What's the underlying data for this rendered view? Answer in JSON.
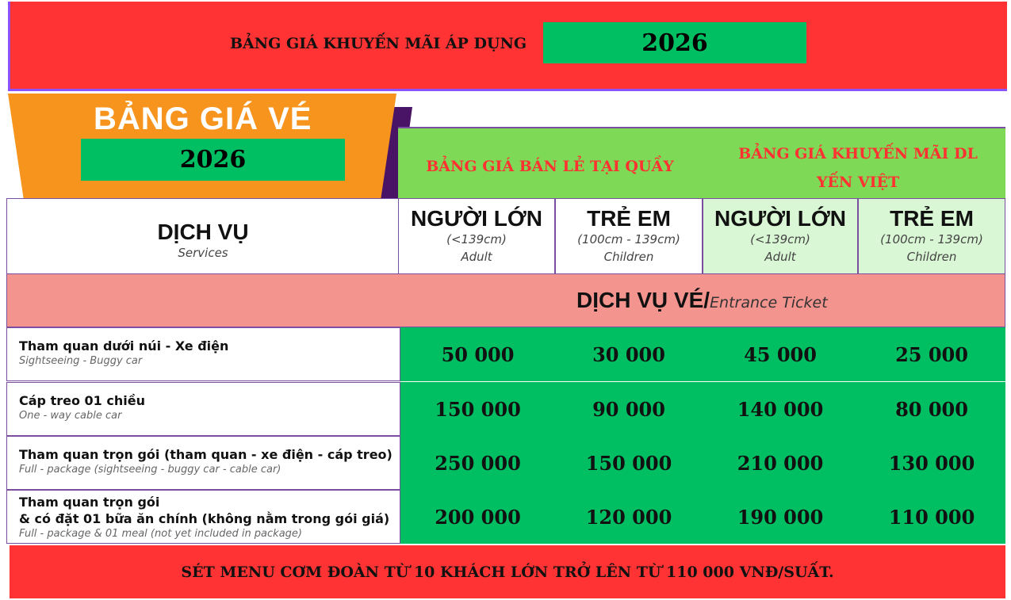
{
  "top_banner": {
    "text": "BẢNG GIÁ KHUYẾN MÃI ÁP DỤNG",
    "year": "2026"
  },
  "title": {
    "text": "BẢNG GIÁ VÉ",
    "year": "2026"
  },
  "group_headers": [
    "BẢNG GIÁ BÁN LẺ TẠI QUẦY",
    "BẢNG GIÁ KHUYẾN MÃI DL YẾN VIỆT"
  ],
  "service_header": {
    "main": "DỊCH VỤ",
    "sub": "Services"
  },
  "columns": [
    {
      "main": "NGƯỜI LỚN",
      "range": "(<139cm)",
      "sub": "Adult"
    },
    {
      "main": "TRẺ EM",
      "range": "(100cm - 139cm)",
      "sub": "Children"
    },
    {
      "main": "NGƯỜI LỚN",
      "range": "(<139cm)",
      "sub": "Adult"
    },
    {
      "main": "TRẺ EM",
      "range": "(100cm - 139cm)",
      "sub": "Children"
    }
  ],
  "section": {
    "main": "DỊCH VỤ VÉ/",
    "sub": "Entrance Ticket"
  },
  "rows": [
    {
      "title": "Tham quan dưới núi - Xe điện",
      "sub": "Sightseeing - Buggy car",
      "prices": [
        "50 000",
        "30 000",
        "45 000",
        "25 000"
      ]
    },
    {
      "title": "Cáp treo 01 chiều",
      "sub": "One - way cable car",
      "prices": [
        "150 000",
        "90 000",
        "140 000",
        "80 000"
      ]
    },
    {
      "title": "Tham quan trọn gói (tham quan - xe điện - cáp treo)",
      "sub": "Full - package (sightseeing - buggy car - cable car)",
      "prices": [
        "250 000",
        "150 000",
        "210 000",
        "130 000"
      ]
    },
    {
      "title": "Tham quan trọn gói",
      "title2": "& có đặt 01 bữa ăn chính (không nằm trong gói giá)",
      "sub": "Full - package & 01 meal (not yet included in package)",
      "prices": [
        "200 000",
        "120 000",
        "190 000",
        "110 000"
      ]
    }
  ],
  "footer": "SÉT MENU CƠM ĐOÀN TỪ 10 KHÁCH LỚN TRỞ LÊN TỪ 110 000 VNĐ/SUẤT.",
  "colors": {
    "red": "#ff3333",
    "green": "#00bf63",
    "light_green": "#7ed957",
    "orange": "#f7941d",
    "purple": "#4a1466",
    "pink": "#f4948f"
  }
}
